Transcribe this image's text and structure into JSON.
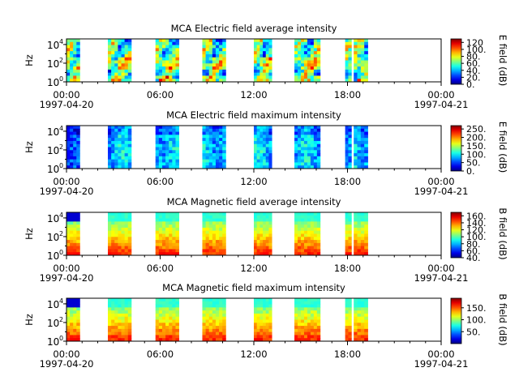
{
  "chart_data": [
    {
      "type": "heatmap",
      "title": "MCA  Electric field average intensity",
      "ylabel": "Hz",
      "y_ticks": [
        {
          "exp": "0",
          "value": 1
        },
        {
          "exp": "2",
          "value": 100
        },
        {
          "exp": "4",
          "value": 10000
        }
      ],
      "x_ticks": [
        "00:00",
        "06:00",
        "12:00",
        "18:00",
        "00:00"
      ],
      "x_start_date": "1997-04-20",
      "x_end_date": "1997-04-21",
      "colorbar": {
        "label": "E field (dB)",
        "min": 0,
        "max": 130,
        "ticks": [
          "0.",
          "20.",
          "40.",
          "60.",
          "80.",
          "100.",
          "120"
        ]
      },
      "intensity": "mixed"
    },
    {
      "type": "heatmap",
      "title": "MCA  Electric field maximum intensity",
      "ylabel": "Hz",
      "y_ticks": [
        {
          "exp": "0",
          "value": 1
        },
        {
          "exp": "2",
          "value": 100
        },
        {
          "exp": "4",
          "value": 10000
        }
      ],
      "x_ticks": [
        "00:00",
        "06:00",
        "12:00",
        "18:00",
        "00:00"
      ],
      "x_start_date": "1997-04-20",
      "x_end_date": "1997-04-21",
      "colorbar": {
        "label": "E field (dB)",
        "min": 0,
        "max": 270,
        "ticks": [
          "0.",
          "50.",
          "100.",
          "150.",
          "200.",
          "250."
        ]
      },
      "intensity": "low"
    },
    {
      "type": "heatmap",
      "title": "MCA  Magnetic field average intensity",
      "ylabel": "Hz",
      "y_ticks": [
        {
          "exp": "0",
          "value": 1
        },
        {
          "exp": "2",
          "value": 100
        },
        {
          "exp": "4",
          "value": 10000
        }
      ],
      "x_ticks": [
        "00:00",
        "06:00",
        "12:00",
        "18:00",
        "00:00"
      ],
      "x_start_date": "1997-04-20",
      "x_end_date": "1997-04-21",
      "colorbar": {
        "label": "B field (dB)",
        "min": 40,
        "max": 170,
        "ticks": [
          "40.",
          "60.",
          "80.",
          "100.",
          "120.",
          "140.",
          "160."
        ]
      },
      "intensity": "gradient"
    },
    {
      "type": "heatmap",
      "title": "MCA  Magnetic field maximum intensity",
      "ylabel": "Hz",
      "y_ticks": [
        {
          "exp": "0",
          "value": 1
        },
        {
          "exp": "2",
          "value": 100
        },
        {
          "exp": "4",
          "value": 10000
        }
      ],
      "x_ticks": [
        "00:00",
        "06:00",
        "12:00",
        "18:00",
        "00:00"
      ],
      "x_start_date": "1997-04-20",
      "x_end_date": "1997-04-21",
      "colorbar": {
        "label": "B field (dB)",
        "min": 0,
        "max": 190,
        "ticks": [
          "50.",
          "100.",
          "150."
        ]
      },
      "intensity": "gradient"
    }
  ],
  "data_blocks_hours": [
    [
      0.0,
      0.85
    ],
    [
      2.65,
      4.15
    ],
    [
      5.7,
      7.2
    ],
    [
      8.7,
      10.2
    ],
    [
      12.0,
      13.15
    ],
    [
      14.6,
      16.25
    ],
    [
      17.85,
      18.25
    ],
    [
      18.4,
      19.3
    ]
  ]
}
